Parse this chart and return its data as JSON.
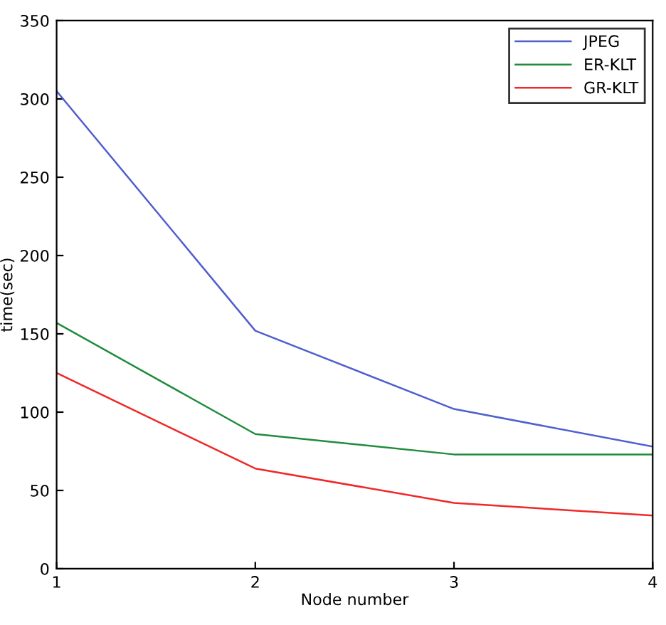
{
  "chart_data": {
    "type": "line",
    "xlabel": "Node number",
    "ylabel": "time(sec)",
    "x": [
      1,
      2,
      3,
      4
    ],
    "series": [
      {
        "name": "JPEG",
        "color": "#4f5fd0",
        "values": [
          305,
          152,
          102,
          78
        ]
      },
      {
        "name": "ER-KLT",
        "color": "#1f8c3c",
        "values": [
          157,
          86,
          73,
          73
        ]
      },
      {
        "name": "GR-KLT",
        "color": "#f02828",
        "values": [
          125,
          64,
          42,
          34
        ]
      }
    ],
    "xlim": [
      1,
      4
    ],
    "ylim": [
      0,
      350
    ],
    "xticks": [
      1,
      2,
      3,
      4
    ],
    "yticks": [
      0,
      50,
      100,
      150,
      200,
      250,
      300,
      350
    ],
    "grid": false,
    "legend": "top right",
    "marker": "none",
    "line_style": "solid"
  }
}
